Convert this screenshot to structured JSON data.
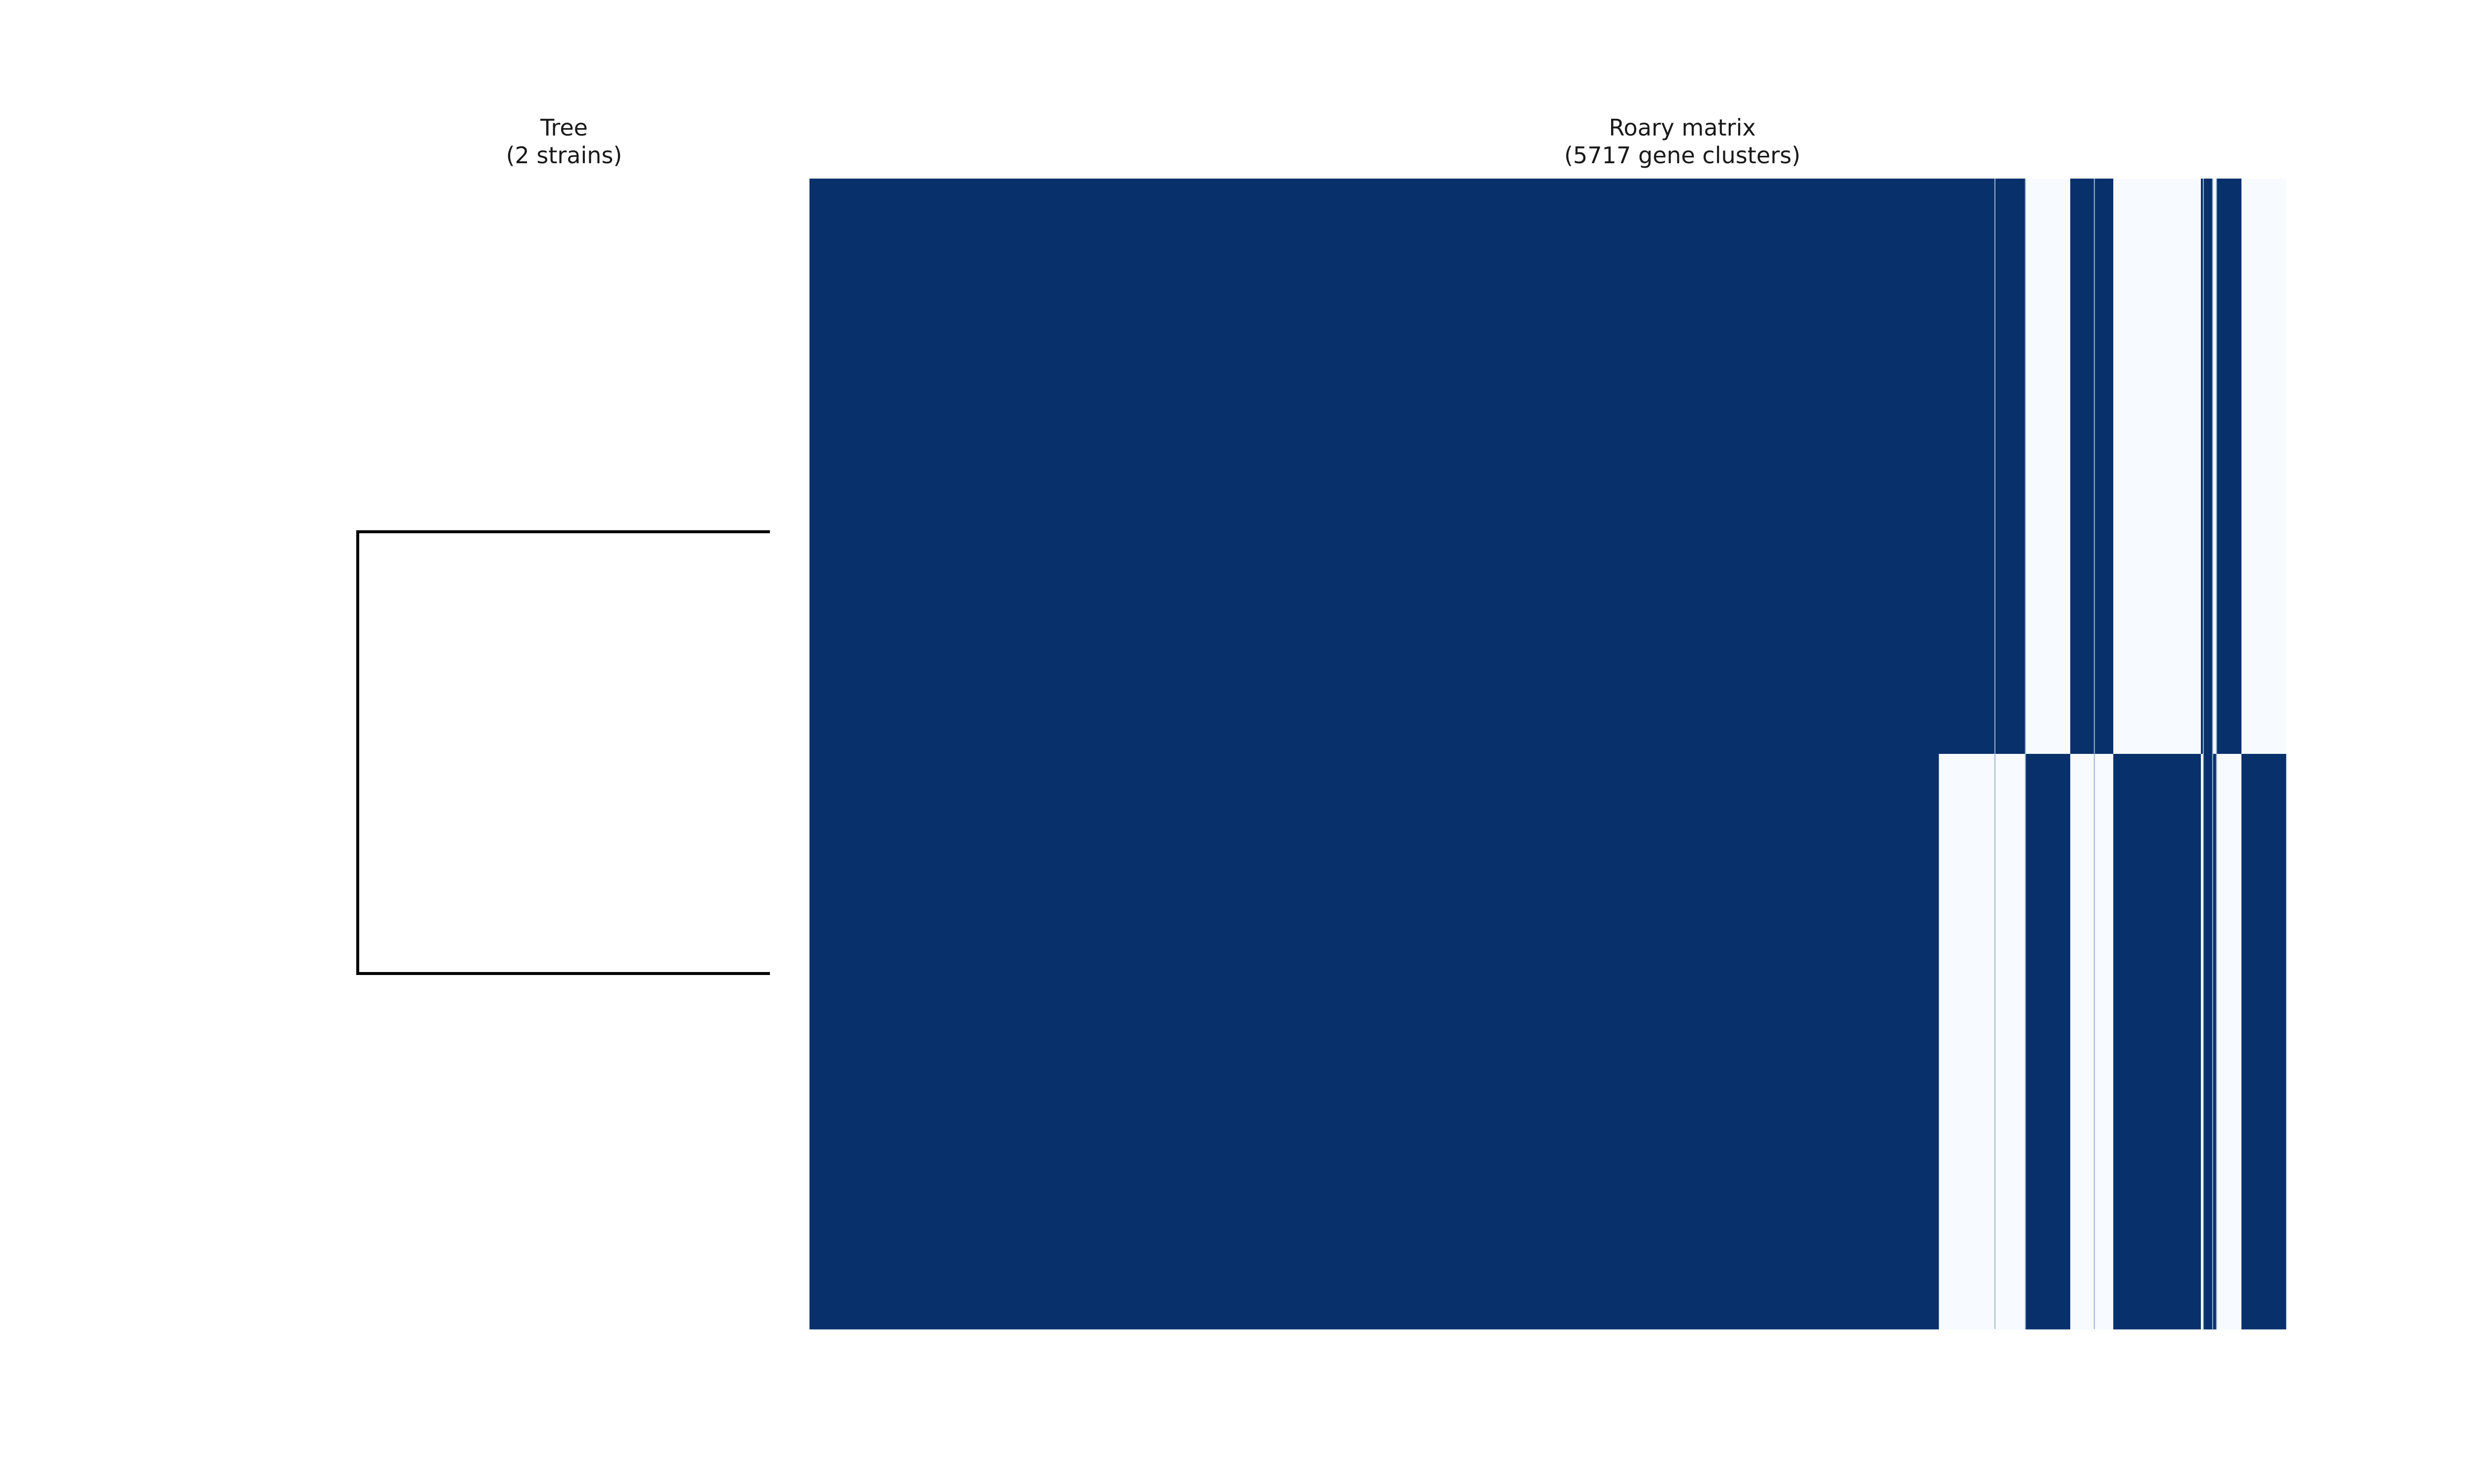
{
  "chart_data": [
    {
      "type": "tree",
      "title": "Tree",
      "subtitle": "(2 strains)",
      "leaves": 2,
      "branch_lengths": [
        1,
        1
      ],
      "grid": false
    },
    {
      "type": "heatmap",
      "title": "Roary matrix",
      "subtitle": "(5717 gene clusters)",
      "rows": 2,
      "n_columns": 5717,
      "value_colors": {
        "present": "#08306b",
        "absent": "#f7fbff"
      },
      "column_blocks": [
        {
          "from": 0,
          "to": 4373,
          "row1": 1,
          "row2": 1
        },
        {
          "from": 4373,
          "to": 4590,
          "row1": 1,
          "row2": 0
        },
        {
          "from": 4590,
          "to": 4708,
          "row1": 1,
          "row2": 0
        },
        {
          "from": 4708,
          "to": 4713,
          "row1": 0,
          "row2": 1
        },
        {
          "from": 4713,
          "to": 4882,
          "row1": 0,
          "row2": 1
        },
        {
          "from": 4882,
          "to": 4975,
          "row1": 1,
          "row2": 0
        },
        {
          "from": 4975,
          "to": 5048,
          "row1": 1,
          "row2": 0
        },
        {
          "from": 5048,
          "to": 5387,
          "row1": 0,
          "row2": 1
        },
        {
          "from": 5387,
          "to": 5397,
          "row1": 1,
          "row2": 0
        },
        {
          "from": 5397,
          "to": 5433,
          "row1": 1,
          "row2": 1
        },
        {
          "from": 5433,
          "to": 5448,
          "row1": 0,
          "row2": 1
        },
        {
          "from": 5448,
          "to": 5463,
          "row1": 1,
          "row2": 0
        },
        {
          "from": 5463,
          "to": 5545,
          "row1": 1,
          "row2": 0
        },
        {
          "from": 5545,
          "to": 5717,
          "row1": 0,
          "row2": 1
        }
      ],
      "grid": false
    }
  ]
}
